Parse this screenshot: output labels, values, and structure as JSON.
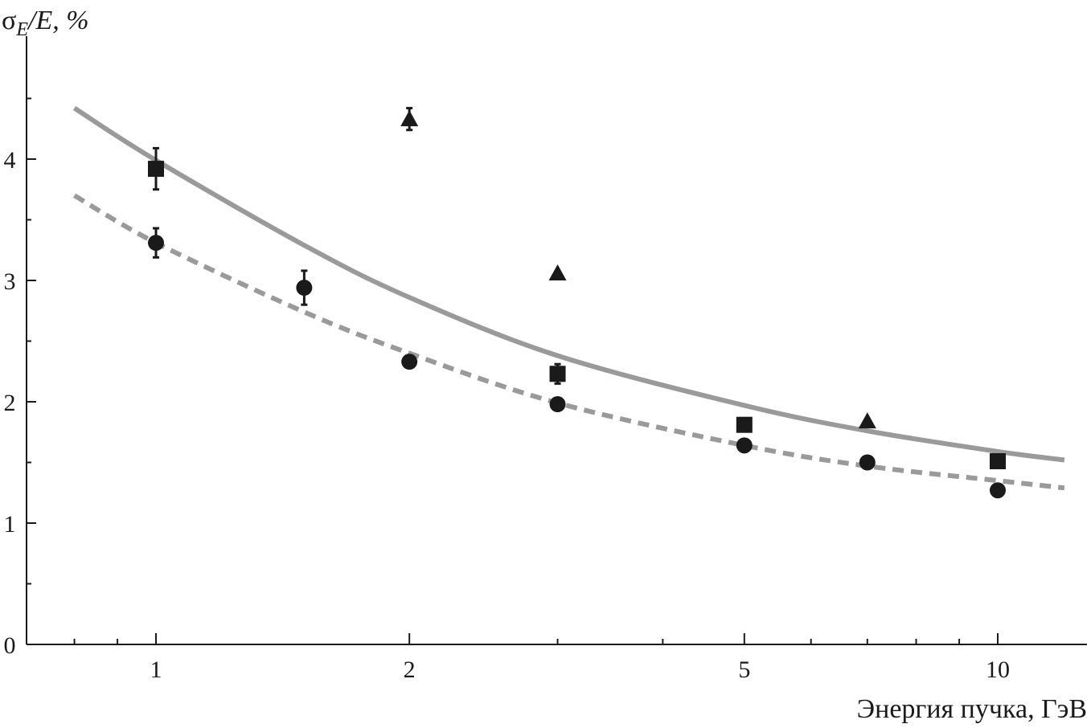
{
  "chart_data": {
    "type": "scatter",
    "x_scale": "log",
    "xlabel": "Энергия пучка, ГэВ",
    "ylabel": {
      "sigma": "σ",
      "sub": "E",
      "rest": "/E, %"
    },
    "xlim": [
      0.75,
      12.5
    ],
    "ylim": [
      0,
      5
    ],
    "x_ticks": [
      1,
      2,
      5,
      10
    ],
    "x_tick_labels": [
      "1",
      "2",
      "5",
      "10"
    ],
    "x_minor_ticks": [
      0.8,
      0.9,
      3,
      4,
      6,
      7,
      8,
      9
    ],
    "y_ticks": [
      0,
      1,
      2,
      3,
      4
    ],
    "y_tick_labels": [
      "0",
      "1",
      "2",
      "3",
      "4"
    ],
    "grid": false,
    "series": [
      {
        "name": "squares",
        "marker": "square",
        "color": "#1a1a1a",
        "points": [
          {
            "x": 1,
            "y": 3.92,
            "err": 0.17
          },
          {
            "x": 3,
            "y": 2.23,
            "err": 0.08
          },
          {
            "x": 5,
            "y": 1.81,
            "err": 0
          },
          {
            "x": 10,
            "y": 1.51,
            "err": 0
          }
        ]
      },
      {
        "name": "circles",
        "marker": "circle",
        "color": "#1a1a1a",
        "points": [
          {
            "x": 1,
            "y": 3.31,
            "err": 0.12
          },
          {
            "x": 1.5,
            "y": 2.94,
            "err": 0.14
          },
          {
            "x": 2,
            "y": 2.33,
            "err": 0
          },
          {
            "x": 3,
            "y": 1.98,
            "err": 0
          },
          {
            "x": 5,
            "y": 1.64,
            "err": 0
          },
          {
            "x": 7,
            "y": 1.5,
            "err": 0
          },
          {
            "x": 10,
            "y": 1.27,
            "err": 0
          }
        ]
      },
      {
        "name": "triangles",
        "marker": "triangle",
        "color": "#1a1a1a",
        "points": [
          {
            "x": 2,
            "y": 4.33,
            "err": 0.09
          },
          {
            "x": 3,
            "y": 3.06,
            "err": 0
          },
          {
            "x": 7,
            "y": 1.84,
            "err": 0
          }
        ]
      }
    ],
    "curves": [
      {
        "name": "solid-fit",
        "style": "solid",
        "color": "#9a9a9a",
        "points": [
          [
            0.8,
            4.42
          ],
          [
            1,
            3.99
          ],
          [
            1.5,
            3.29
          ],
          [
            2,
            2.86
          ],
          [
            3,
            2.38
          ],
          [
            5,
            1.97
          ],
          [
            7,
            1.76
          ],
          [
            10,
            1.59
          ],
          [
            12,
            1.52
          ]
        ]
      },
      {
        "name": "dashed-fit",
        "style": "dashed",
        "color": "#9a9a9a",
        "points": [
          [
            0.8,
            3.7
          ],
          [
            1,
            3.31
          ],
          [
            1.5,
            2.74
          ],
          [
            2,
            2.4
          ],
          [
            3,
            1.99
          ],
          [
            5,
            1.64
          ],
          [
            7,
            1.47
          ],
          [
            10,
            1.35
          ],
          [
            12,
            1.29
          ]
        ]
      }
    ]
  }
}
